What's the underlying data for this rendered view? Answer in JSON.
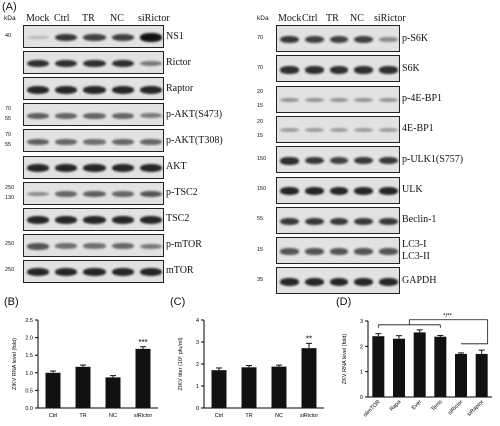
{
  "panels": {
    "a": "(A)",
    "b": "(B)",
    "c": "(C)",
    "d": "(D)"
  },
  "kda": "kDa",
  "lanes": [
    "Mock",
    "Ctrl",
    "TR",
    "NC",
    "siRictor"
  ],
  "left_blots": [
    {
      "label": "NS1",
      "markers": [
        "40"
      ],
      "bands": [
        0.05,
        0.75,
        0.7,
        0.7,
        0.95
      ]
    },
    {
      "label": "Rictor",
      "markers": [],
      "bands": [
        0.8,
        0.8,
        0.8,
        0.8,
        0.4
      ]
    },
    {
      "label": "Raptor",
      "markers": [],
      "bands": [
        0.85,
        0.85,
        0.85,
        0.85,
        0.85
      ]
    },
    {
      "label": "p-AKT(S473)",
      "markers": [
        "70",
        "55"
      ],
      "bands": [
        0.55,
        0.5,
        0.5,
        0.5,
        0.4
      ]
    },
    {
      "label": "p-AKT(T308)",
      "markers": [
        "70",
        "55"
      ],
      "bands": [
        0.55,
        0.5,
        0.45,
        0.5,
        0.5
      ]
    },
    {
      "label": "AKT",
      "markers": [],
      "bands": [
        0.85,
        0.85,
        0.85,
        0.85,
        0.85
      ]
    },
    {
      "label": "p-TSC2",
      "markers": [
        "250",
        "130"
      ],
      "bands": [
        0.3,
        0.5,
        0.55,
        0.5,
        0.6
      ]
    },
    {
      "label": "TSC2",
      "markers": [],
      "bands": [
        0.85,
        0.85,
        0.85,
        0.85,
        0.85
      ]
    },
    {
      "label": "p-mTOR",
      "markers": [
        "250"
      ],
      "bands": [
        0.6,
        0.45,
        0.45,
        0.5,
        0.4
      ]
    },
    {
      "label": "mTOR",
      "markers": [
        "250"
      ],
      "bands": [
        0.85,
        0.85,
        0.85,
        0.85,
        0.85
      ]
    }
  ],
  "right_blots": [
    {
      "label": "p-S6K",
      "markers": [
        "70"
      ],
      "bands": [
        0.75,
        0.7,
        0.7,
        0.7,
        0.3
      ]
    },
    {
      "label": "S6K",
      "markers": [
        "70"
      ],
      "bands": [
        0.8,
        0.8,
        0.8,
        0.8,
        0.8
      ]
    },
    {
      "label": "p-4E-BP1",
      "markers": [
        "20",
        "15"
      ],
      "bands": [
        0.25,
        0.25,
        0.25,
        0.25,
        0.25
      ]
    },
    {
      "label": "4E-BP1",
      "markers": [
        "20",
        "15"
      ],
      "bands": [
        0.2,
        0.2,
        0.2,
        0.2,
        0.2
      ]
    },
    {
      "label": "p-ULK1(S757)",
      "markers": [
        "150"
      ],
      "bands": [
        0.8,
        0.75,
        0.7,
        0.75,
        0.75
      ]
    },
    {
      "label": "ULK",
      "markers": [
        "150"
      ],
      "bands": [
        0.85,
        0.85,
        0.85,
        0.85,
        0.85
      ]
    },
    {
      "label": "Beclin-1",
      "markers": [
        "55"
      ],
      "bands": [
        0.75,
        0.75,
        0.75,
        0.75,
        0.75
      ]
    },
    {
      "label": "LC3-I\nLC3-II",
      "markers": [
        "15"
      ],
      "bands": [
        0.6,
        0.6,
        0.6,
        0.6,
        0.6
      ]
    },
    {
      "label": "GAPDH",
      "markers": [
        "35"
      ],
      "bands": [
        0.85,
        0.85,
        0.85,
        0.85,
        0.85
      ]
    }
  ],
  "chart_data": [
    {
      "type": "bar",
      "panel": "(B)",
      "ylabel": "ZIKV RNA level (fold)",
      "categories": [
        "Ctrl",
        "TR",
        "NC",
        "siRictor"
      ],
      "values": [
        1.0,
        1.17,
        0.87,
        1.68
      ],
      "errors": [
        0.05,
        0.05,
        0.05,
        0.06
      ],
      "ylim": [
        0,
        2.5
      ],
      "yticks": [
        "0.0",
        "0.5",
        "1.0",
        "1.5",
        "2.0",
        "2.5"
      ],
      "significance": [
        {
          "index": 3,
          "label": "***"
        }
      ]
    },
    {
      "type": "bar",
      "panel": "(C)",
      "ylabel": "ZIKV titer (10⁵ pfu/ml)",
      "categories": [
        "Ctrl",
        "TR",
        "NC",
        "siRictor"
      ],
      "values": [
        1.72,
        1.85,
        1.88,
        2.72
      ],
      "errors": [
        0.1,
        0.08,
        0.07,
        0.22
      ],
      "ylim": [
        0,
        4
      ],
      "yticks": [
        "0",
        "1",
        "2",
        "3",
        "4"
      ],
      "significance": [
        {
          "index": 3,
          "label": "**"
        }
      ]
    },
    {
      "type": "bar",
      "panel": "(D)",
      "ylabel": "ZKV RNA level (fold)",
      "categories": [
        "siimTOR",
        "Rapa",
        "Ever",
        "Tems",
        "siRictor",
        "siRaptor"
      ],
      "values": [
        2.4,
        2.3,
        2.55,
        2.38,
        1.7,
        1.7
      ],
      "errors": [
        0.1,
        0.12,
        0.1,
        0.05,
        0.04,
        0.15
      ],
      "ylim": [
        0,
        3
      ],
      "yticks": [
        "0",
        "1",
        "2",
        "3"
      ],
      "significance": [
        {
          "label": "*/**"
        }
      ]
    }
  ]
}
